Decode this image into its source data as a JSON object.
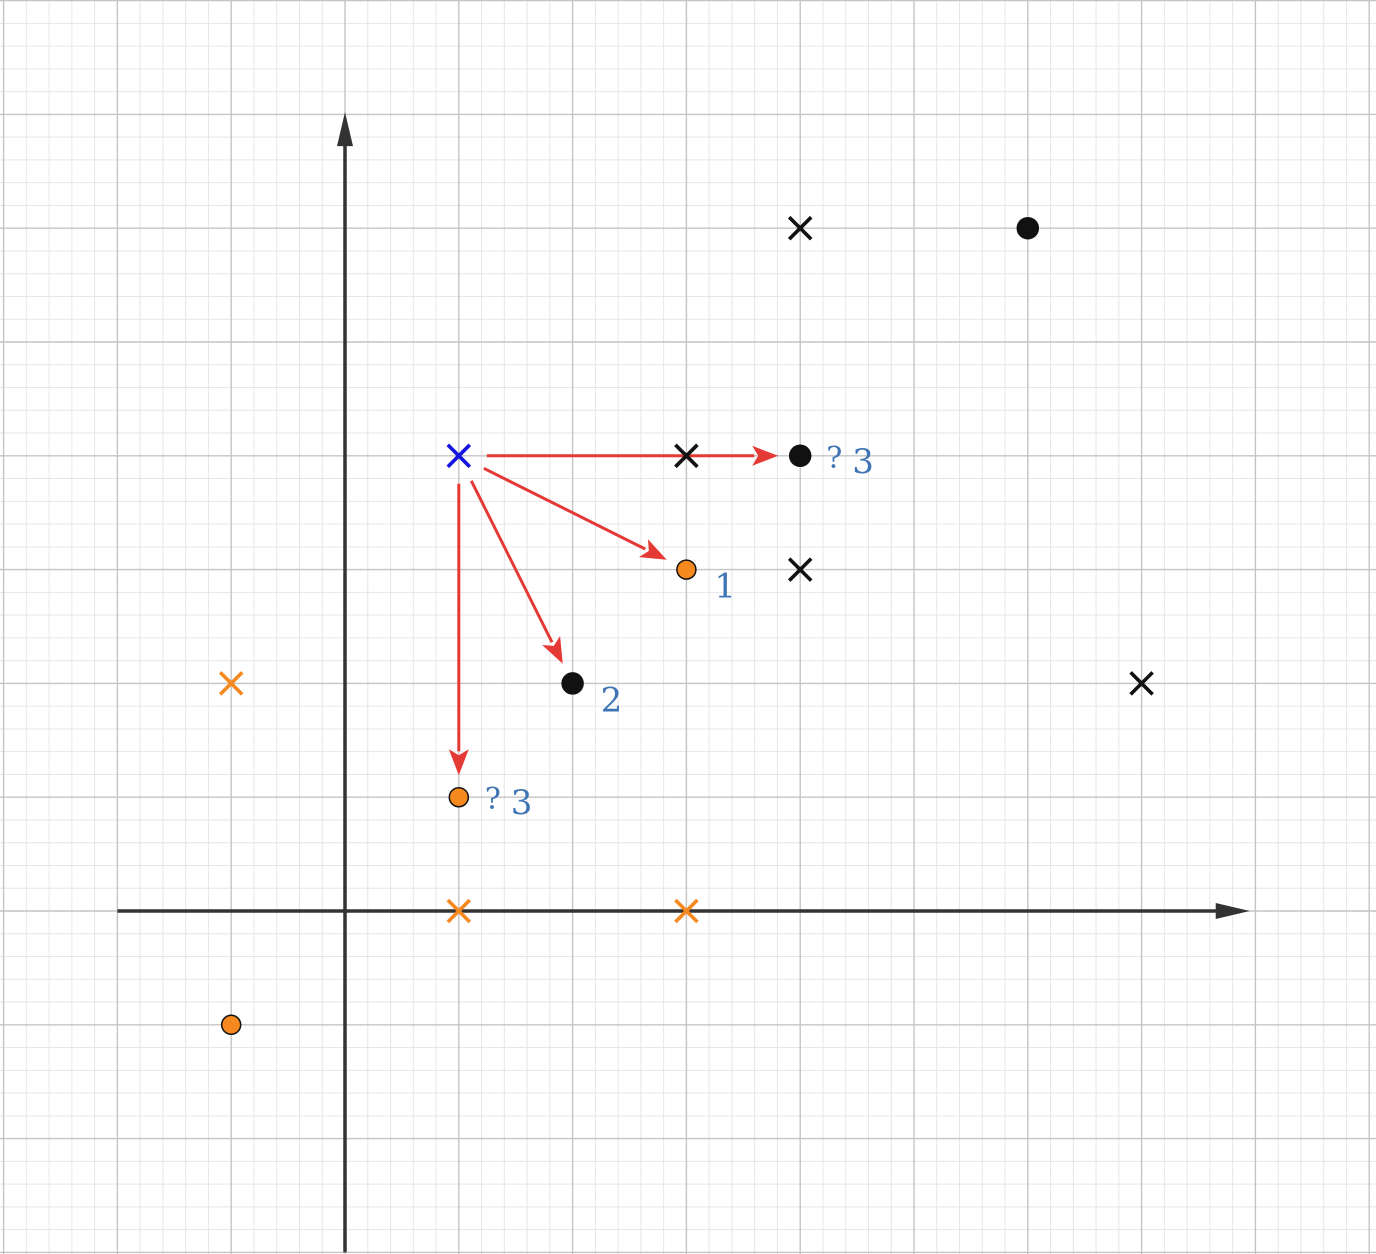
{
  "plot": {
    "x_range": [
      -3,
      7
    ],
    "y_range": [
      -3,
      8
    ],
    "minor_per_unit": 5,
    "grid": true
  },
  "colors": {
    "black": "#111111",
    "orange": "#f5891f",
    "blue": "#1515e0",
    "arrow": "#e53935",
    "label": "#3f74b5"
  },
  "query_point": {
    "x": 1,
    "y": 4,
    "marker": "cross",
    "color": "blue"
  },
  "points": [
    {
      "id": "p-x-4-6",
      "x": 4,
      "y": 6,
      "marker": "cross",
      "color": "black"
    },
    {
      "id": "p-o-6-6",
      "x": 6,
      "y": 6,
      "marker": "dot",
      "color": "black"
    },
    {
      "id": "p-x-3-4",
      "x": 3,
      "y": 4,
      "marker": "cross",
      "color": "black"
    },
    {
      "id": "p-o-4-4",
      "x": 4,
      "y": 4,
      "marker": "dot",
      "color": "black"
    },
    {
      "id": "p-o-3-3",
      "x": 3,
      "y": 3,
      "marker": "dot",
      "color": "orange"
    },
    {
      "id": "p-x-4-3",
      "x": 4,
      "y": 3,
      "marker": "cross",
      "color": "black"
    },
    {
      "id": "p-o-2-2",
      "x": 2,
      "y": 2,
      "marker": "dot",
      "color": "black"
    },
    {
      "id": "p-x-7-2",
      "x": 7,
      "y": 2,
      "marker": "cross",
      "color": "black"
    },
    {
      "id": "p-x-m1-2",
      "x": -1,
      "y": 2,
      "marker": "cross",
      "color": "orange"
    },
    {
      "id": "p-o-1-1",
      "x": 1,
      "y": 1,
      "marker": "dot",
      "color": "orange"
    },
    {
      "id": "p-x-1-0",
      "x": 1,
      "y": 0,
      "marker": "cross",
      "color": "orange"
    },
    {
      "id": "p-x-3-0",
      "x": 3,
      "y": 0,
      "marker": "cross",
      "color": "orange"
    },
    {
      "id": "p-o-m1-m1",
      "x": -1,
      "y": -1,
      "marker": "dot",
      "color": "orange"
    }
  ],
  "arrows": [
    {
      "id": "arrow-to-4-4",
      "from": [
        1,
        4
      ],
      "to": [
        4,
        4
      ]
    },
    {
      "id": "arrow-to-3-3",
      "from": [
        1,
        4
      ],
      "to": [
        3,
        3
      ]
    },
    {
      "id": "arrow-to-2-2",
      "from": [
        1,
        4
      ],
      "to": [
        2,
        2
      ]
    },
    {
      "id": "arrow-to-1-1",
      "from": [
        1,
        4
      ],
      "to": [
        1,
        1
      ]
    }
  ],
  "labels": [
    {
      "id": "label-rank-1",
      "at": [
        3,
        3
      ],
      "question": "",
      "number": "1"
    },
    {
      "id": "label-rank-2",
      "at": [
        2,
        2
      ],
      "question": "",
      "number": "2"
    },
    {
      "id": "label-rank-3-right",
      "at": [
        4,
        4
      ],
      "question": "?",
      "number": "3"
    },
    {
      "id": "label-rank-3-bottom",
      "at": [
        1,
        1
      ],
      "question": "?",
      "number": "3"
    }
  ]
}
